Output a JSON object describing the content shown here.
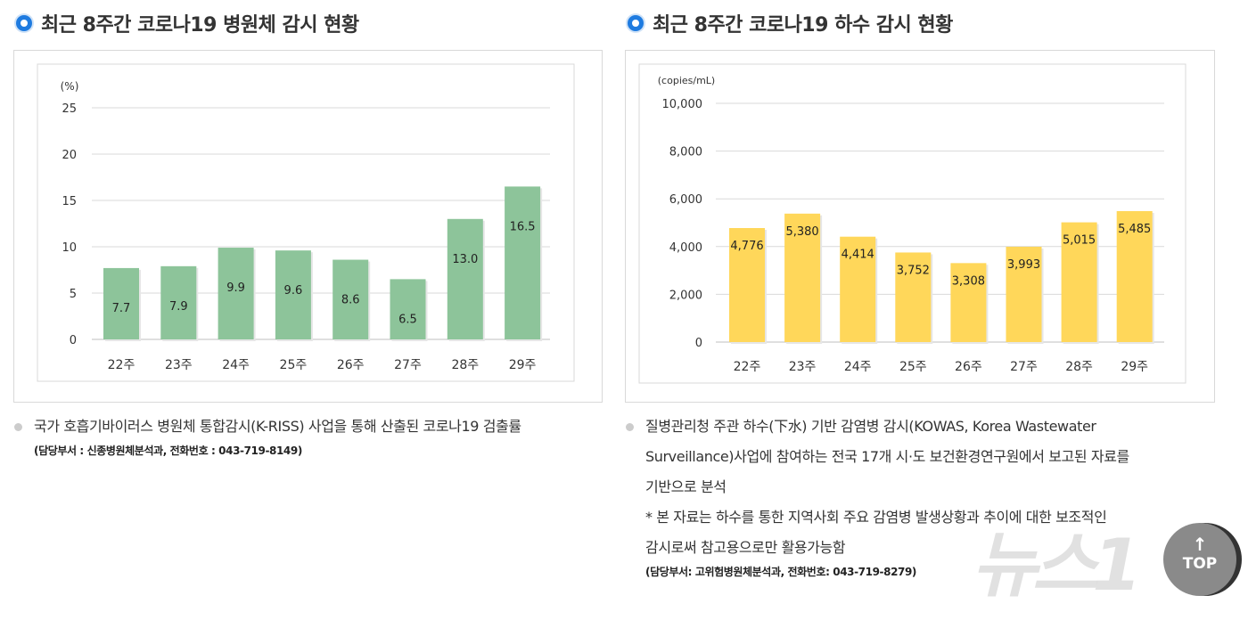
{
  "chart_data": [
    {
      "type": "bar",
      "title": "최근 8주간 코로나19 병원체 감시 현황",
      "ylabel": "(%)",
      "categories": [
        "22주",
        "23주",
        "24주",
        "25주",
        "26주",
        "27주",
        "28주",
        "29주"
      ],
      "values": [
        7.7,
        7.9,
        9.9,
        9.6,
        8.6,
        6.5,
        13.0,
        16.5
      ],
      "value_labels": [
        "7.7",
        "7.9",
        "9.9",
        "9.6",
        "8.6",
        "6.5",
        "13.0",
        "16.5"
      ],
      "ylim": [
        0,
        25
      ],
      "yticks": [
        "0",
        "5",
        "10",
        "15",
        "20",
        "25"
      ],
      "grid": true,
      "color": "#8dc49a"
    },
    {
      "type": "bar",
      "title": "최근 8주간 코로나19 하수 감시 현황",
      "ylabel": "(copies/mL)",
      "categories": [
        "22주",
        "23주",
        "24주",
        "25주",
        "26주",
        "27주",
        "28주",
        "29주"
      ],
      "values": [
        4776,
        5380,
        4414,
        3752,
        3308,
        3993,
        5015,
        5485
      ],
      "value_labels": [
        "4,776",
        "5,380",
        "4,414",
        "3,752",
        "3,308",
        "3,993",
        "5,015",
        "5,485"
      ],
      "ylim": [
        0,
        10000
      ],
      "yticks": [
        "0",
        "2,000",
        "4,000",
        "6,000",
        "8,000",
        "10,000"
      ],
      "grid": true,
      "color": "#ffd75a"
    }
  ],
  "notes": {
    "left": {
      "text": "국가 호흡기바이러스 병원체 통합감시(K-RISS) 사업을 통해 산출된 코로나19 검출률",
      "contact": "(담당부서 : 신종병원체분석과, 전화번호 : 043-719-8149)"
    },
    "right": {
      "lines": [
        "질병관리청 주관 하수(下水) 기반 감염병 감시(KOWAS, Korea Wastewater",
        "Surveillance)사업에 참여하는 전국 17개 시·도 보건환경연구원에서 보고된 자료를",
        "기반으로 분석",
        "* 본 자료는 하수를 통한 지역사회 주요 감염병 발생상황과 추이에 대한 보조적인",
        "감시로써 참고용으로만 활용가능함"
      ],
      "contact": "(담당부서: 고위험병원체분석과, 전화번호: 043-719-8279)"
    }
  },
  "top_button": {
    "label": "TOP",
    "icon": "arrow-up-icon"
  },
  "watermark": "뉴스1"
}
